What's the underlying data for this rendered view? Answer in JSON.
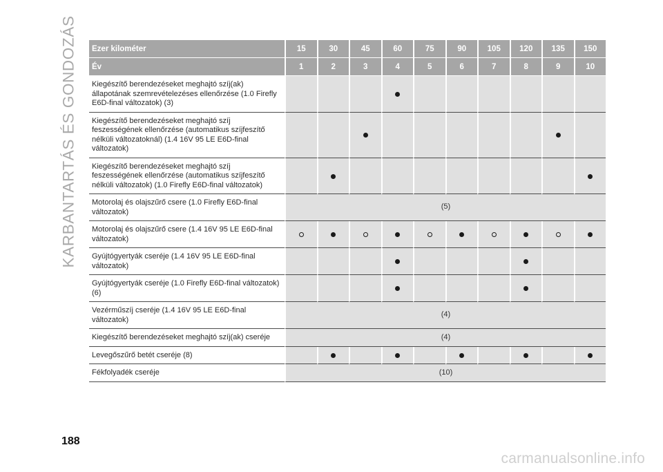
{
  "side_title": "KARBANTARTÁS ÉS GONDOZÁS",
  "page_number": "188",
  "watermark": "carmanualsonline.info",
  "table": {
    "header_km_label": "Ezer kilométer",
    "header_year_label": "Év",
    "km": [
      "15",
      "30",
      "45",
      "60",
      "75",
      "90",
      "105",
      "120",
      "135",
      "150"
    ],
    "years": [
      "1",
      "2",
      "3",
      "4",
      "5",
      "6",
      "7",
      "8",
      "9",
      "10"
    ],
    "rows": [
      {
        "label": "Kiegészítő berendezéseket meghajtó szíj(ak) állapotának szemrevételezéses ellenőrzése (1.0 Firefly E6D-final változatok) (3)",
        "cells": [
          "",
          "",
          "",
          "dot",
          "",
          "",
          "",
          "",
          "",
          ""
        ]
      },
      {
        "label": "Kiegészítő berendezéseket meghajtó szíj feszességének ellenőrzése (automatikus szíjfeszítő nélküli változatoknál) (1.4 16V 95 LE E6D-final változatok)",
        "cells": [
          "",
          "",
          "dot",
          "",
          "",
          "",
          "",
          "",
          "dot",
          ""
        ]
      },
      {
        "label": "Kiegészítő berendezéseket meghajtó szíj feszességének ellenőrzése (automatikus szíjfeszítő nélküli változatok) (1.0 Firefly E6D-final változatok)",
        "cells": [
          "",
          "dot",
          "",
          "",
          "",
          "",
          "",
          "",
          "",
          "dot"
        ]
      },
      {
        "label": "Motorolaj és olajszűrő csere (1.0 Firefly E6D-final változatok)",
        "span": "(5)"
      },
      {
        "label": "Motorolaj és olajszűrő csere (1.4 16V 95 LE E6D-final változatok)",
        "cells": [
          "ring",
          "dot",
          "ring",
          "dot",
          "ring",
          "dot",
          "ring",
          "dot",
          "ring",
          "dot"
        ]
      },
      {
        "label": "Gyújtógyertyák cseréje (1.4 16V 95 LE E6D-final változatok)",
        "cells": [
          "",
          "",
          "",
          "dot",
          "",
          "",
          "",
          "dot",
          "",
          ""
        ]
      },
      {
        "label": "Gyújtógyertyák cseréje (1.0 Firefly E6D-final változatok) (6)",
        "cells": [
          "",
          "",
          "",
          "dot",
          "",
          "",
          "",
          "dot",
          "",
          ""
        ]
      },
      {
        "label": "Vezérműszíj cseréje (1.4 16V 95 LE E6D-final változatok)",
        "span": "(4)"
      },
      {
        "label": "Kiegészítő berendezéseket meghajtó szíj(ak) cseréje",
        "span": "(4)"
      },
      {
        "label": "Levegőszűrő betét cseréje (8)",
        "cells": [
          "",
          "dot",
          "",
          "dot",
          "",
          "dot",
          "",
          "dot",
          "",
          "dot"
        ]
      },
      {
        "label": "Fékfolyadék cseréje",
        "span": "(10)"
      }
    ]
  }
}
